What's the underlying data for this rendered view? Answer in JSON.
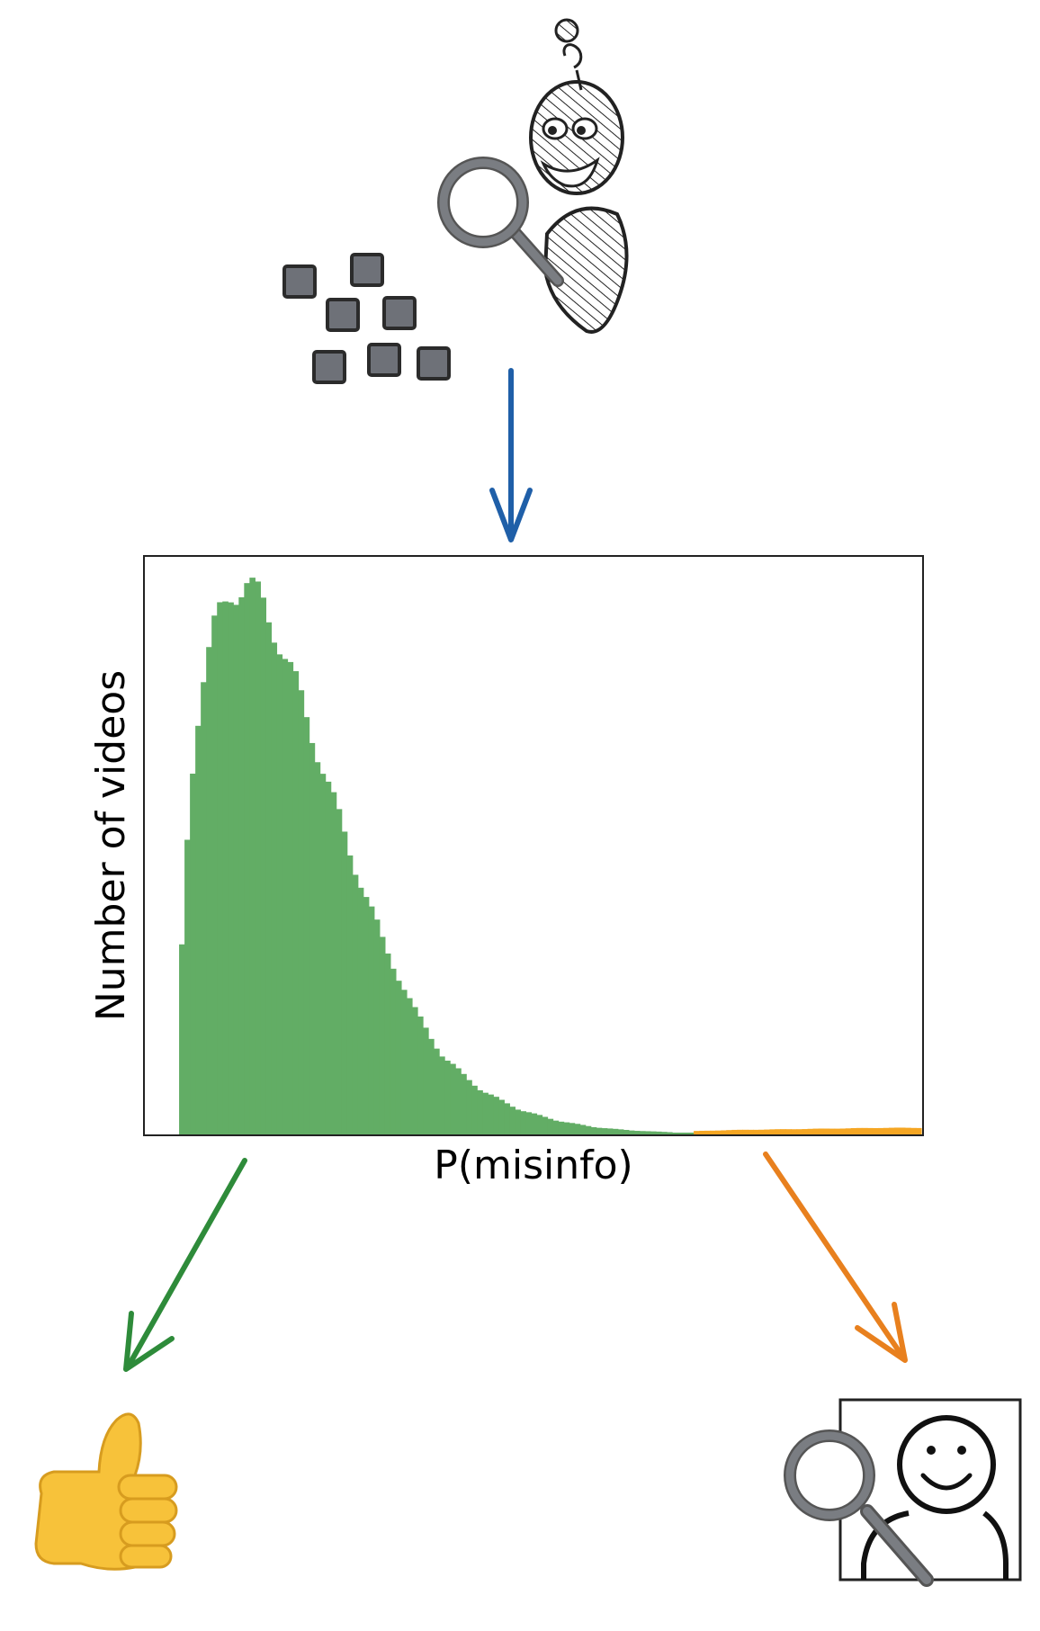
{
  "colors": {
    "low_risk": "#62ad65",
    "high_risk": "#f5a623",
    "arrow_blue": "#1f5fa8",
    "arrow_green": "#2e8b3a",
    "arrow_orange": "#e8801e",
    "video_tile": "#6e7178",
    "magnifier": "#7a7d82",
    "thumb": "#f7c23a"
  },
  "icons": {
    "classifier": "robot-with-magnifier-icon",
    "videos": "video-thumbnails-icon",
    "approve": "thumbs-up-icon",
    "review": "human-reviewer-with-magnifier-icon"
  },
  "chart_data": {
    "type": "area",
    "title": "",
    "xlabel": "P(misinfo)",
    "ylabel": "Number of videos",
    "xlim": [
      0,
      1
    ],
    "ticks_shown": false,
    "grid": false,
    "threshold": 0.7,
    "x": [
      0.0,
      0.02,
      0.025,
      0.035,
      0.05,
      0.07,
      0.09,
      0.11,
      0.13,
      0.15,
      0.18,
      0.21,
      0.25,
      0.29,
      0.33,
      0.37,
      0.42,
      0.47,
      0.52,
      0.57,
      0.62,
      0.67,
      0.7,
      0.75,
      0.8,
      0.85,
      0.9,
      0.95,
      1.0
    ],
    "series": [
      {
        "values": [
          0,
          0,
          0.34,
          0.62,
          0.81,
          0.93,
          0.99,
          1.0,
          0.97,
          0.91,
          0.8,
          0.67,
          0.5,
          0.35,
          0.23,
          0.14,
          0.08,
          0.045,
          0.025,
          0.013,
          0.007,
          0.004,
          0.0,
          0.0,
          0.0,
          0.0,
          0.0,
          0.0,
          0.0
        ]
      },
      {
        "values": [
          0,
          0,
          0,
          0,
          0,
          0,
          0,
          0,
          0,
          0,
          0,
          0,
          0,
          0,
          0,
          0,
          0,
          0,
          0,
          0,
          0,
          0,
          0.006,
          0.008,
          0.009,
          0.01,
          0.011,
          0.012,
          0.012
        ]
      }
    ]
  }
}
